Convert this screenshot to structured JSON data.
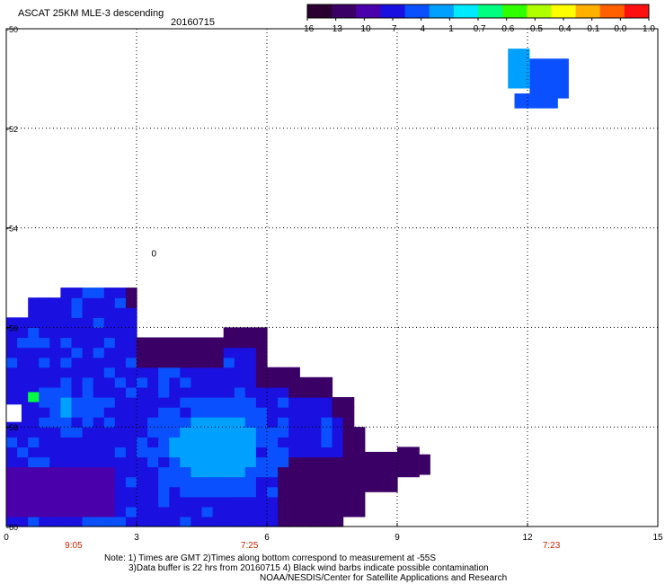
{
  "header": {
    "title": "ASCAT 25KM MLE-3 descending",
    "date": "20160715"
  },
  "colorbar": {
    "colors": [
      "#2a0030",
      "#3a0066",
      "#4a00aa",
      "#1a10e0",
      "#0a50ff",
      "#00a0ff",
      "#00eaff",
      "#00ff80",
      "#30ff00",
      "#b0ff00",
      "#ffff00",
      "#ffb000",
      "#ff6000",
      "#ff1010"
    ],
    "labels": [
      "-16",
      "-13",
      "-10",
      "-7",
      "-4",
      "-1",
      "-0.7",
      "-0.6",
      "-0.5",
      "-0.4",
      "-0.1",
      "0.0",
      "1.0"
    ]
  },
  "chart_data": {
    "type": "heatmap",
    "title": "ASCAT 25KM MLE-3 descending",
    "subtitle": "20160715",
    "xlim": [
      0,
      15
    ],
    "ylim": [
      -60,
      -50
    ],
    "x_ticks": [
      "0",
      "3",
      "6",
      "9",
      "12",
      "15"
    ],
    "y_ticks": [
      "-50",
      "-52",
      "-54",
      "-56",
      "-58",
      "-60"
    ],
    "time_labels": [
      {
        "x": 1.55,
        "label": "9:05",
        "color": "#cc2200"
      },
      {
        "x": 5.6,
        "label": "7:25",
        "color": "#cc2200"
      },
      {
        "x": 12.55,
        "label": "7:23",
        "color": "#cc2200"
      }
    ],
    "contour_marker": {
      "x": 3.4,
      "y": -54.5,
      "label": "0"
    },
    "grid": "dotted",
    "colormap_values": [
      -16,
      -13,
      -10,
      -7,
      -4,
      -1,
      -0.7,
      -0.6,
      -0.5,
      -0.4,
      -0.1,
      0.0,
      1.0
    ],
    "cell_size": {
      "dx": 0.25,
      "dy": 0.2
    },
    "regions": [
      {
        "name": "small patch NE",
        "cells": [
          {
            "x0": 11.55,
            "x1": 12.05,
            "y0": -50.4,
            "y1": -51.2,
            "value": -0.9
          },
          {
            "x0": 12.05,
            "x1": 12.95,
            "y0": -50.6,
            "y1": -51.4,
            "value": -1.2
          },
          {
            "x0": 11.7,
            "x1": 12.7,
            "y0": -51.3,
            "y1": -51.6,
            "value": -3
          }
        ]
      },
      {
        "name": "main swath SW",
        "x_range": [
          0,
          9.7
        ],
        "y_range": [
          -60,
          -55.0
        ],
        "value_range": [
          -16,
          -1
        ]
      }
    ]
  },
  "notes": {
    "line1": "Note: 1) Times are GMT 2)Times along bottom correspond to measurement at -55S",
    "line2": "3)Data buffer is 22 hrs from 20160715 4) Black wind barbs indicate possible contamination",
    "line3": "NOAA/NESDIS/Center for Satellite Applications and Research"
  }
}
